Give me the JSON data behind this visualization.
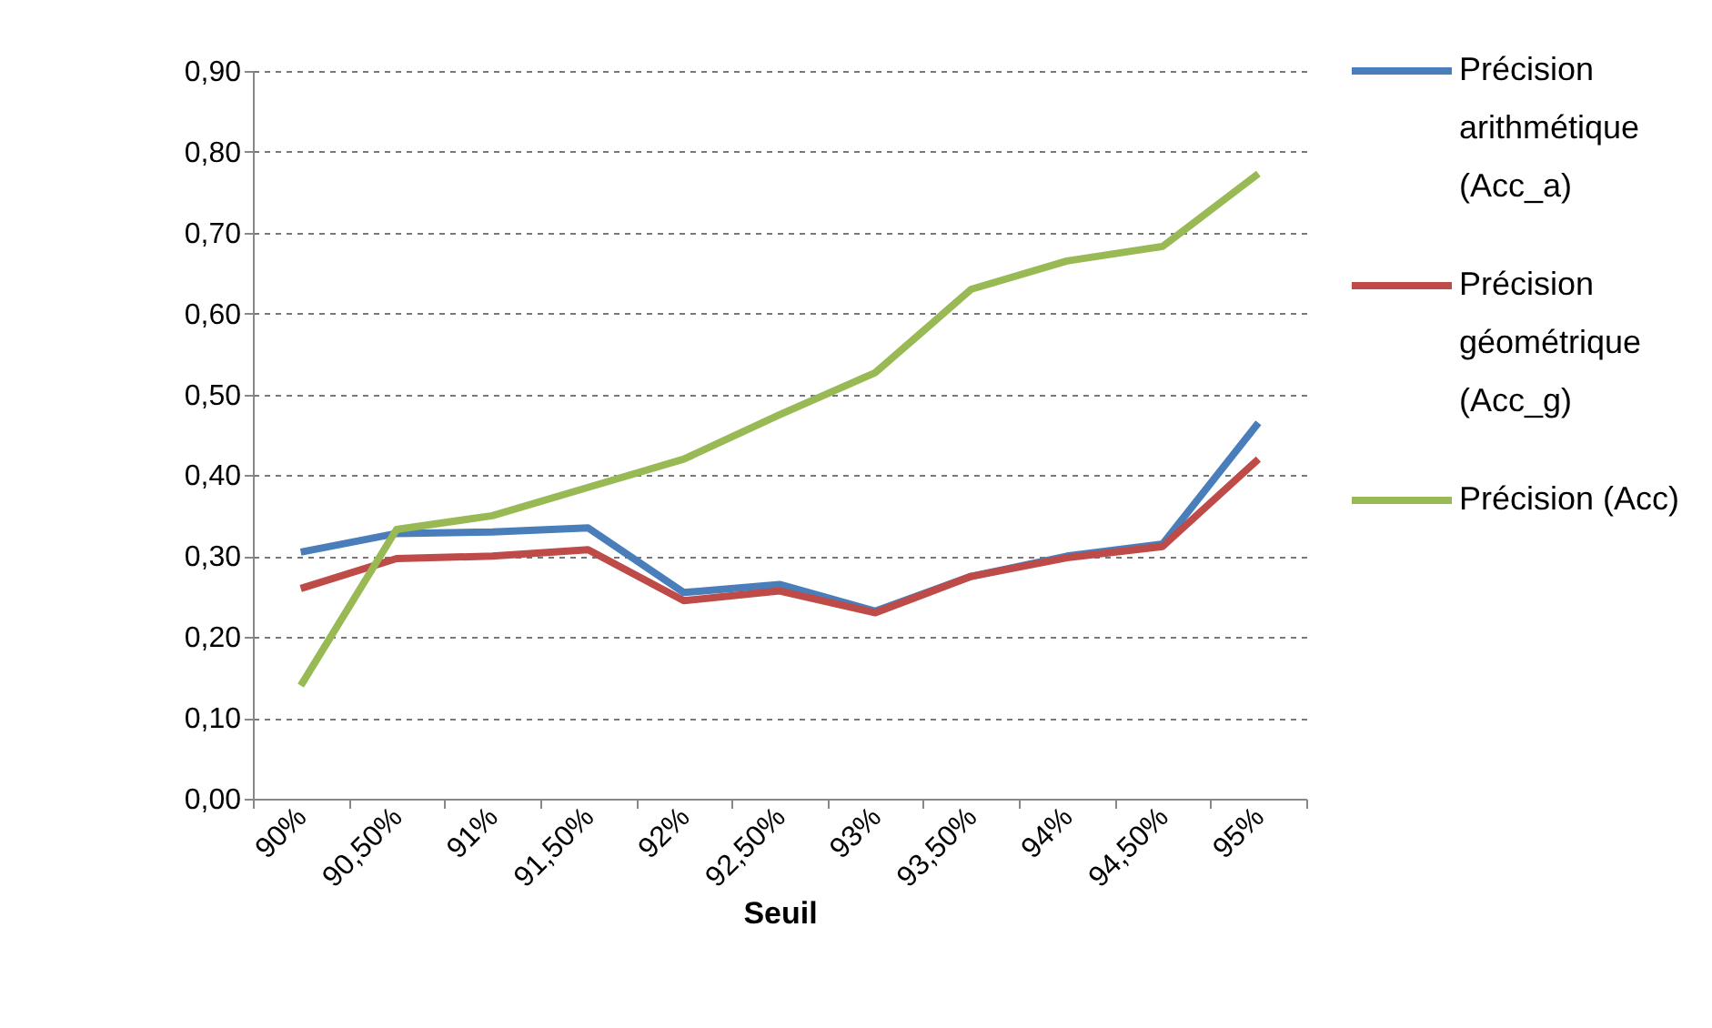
{
  "chart_data": {
    "type": "line",
    "xlabel": "Seuil",
    "categories": [
      "90%",
      "90,50%",
      "91%",
      "91,50%",
      "92%",
      "92,50%",
      "93%",
      "93,50%",
      "94%",
      "94,50%",
      "95%"
    ],
    "series": [
      {
        "name": "Précision arithmétique (Acc_a)",
        "color": "#4a7ebb",
        "values": [
          0.305,
          0.328,
          0.33,
          0.335,
          0.255,
          0.265,
          0.232,
          0.275,
          0.3,
          0.315,
          0.465
        ]
      },
      {
        "name": "Précision géométrique (Acc_g)",
        "color": "#be4b48",
        "values": [
          0.26,
          0.297,
          0.3,
          0.308,
          0.245,
          0.257,
          0.23,
          0.275,
          0.298,
          0.312,
          0.42
        ]
      },
      {
        "name": "Précision (Acc)",
        "color": "#98b954",
        "values": [
          0.14,
          0.333,
          0.35,
          0.385,
          0.42,
          0.475,
          0.527,
          0.63,
          0.665,
          0.683,
          0.773
        ]
      }
    ],
    "ylim": [
      0,
      0.9
    ],
    "yticks": [
      {
        "value": 0,
        "label": "0,00"
      },
      {
        "value": 0.1,
        "label": "0,10"
      },
      {
        "value": 0.2,
        "label": "0,20"
      },
      {
        "value": 0.3,
        "label": "0,30"
      },
      {
        "value": 0.4,
        "label": "0,40"
      },
      {
        "value": 0.5,
        "label": "0,50"
      },
      {
        "value": 0.6,
        "label": "0,60"
      },
      {
        "value": 0.7,
        "label": "0,70"
      },
      {
        "value": 0.8,
        "label": "0,80"
      },
      {
        "value": 0.9,
        "label": "0,90"
      }
    ],
    "grid": "y",
    "legend": "right",
    "marker": "none",
    "line_style": "solid"
  }
}
